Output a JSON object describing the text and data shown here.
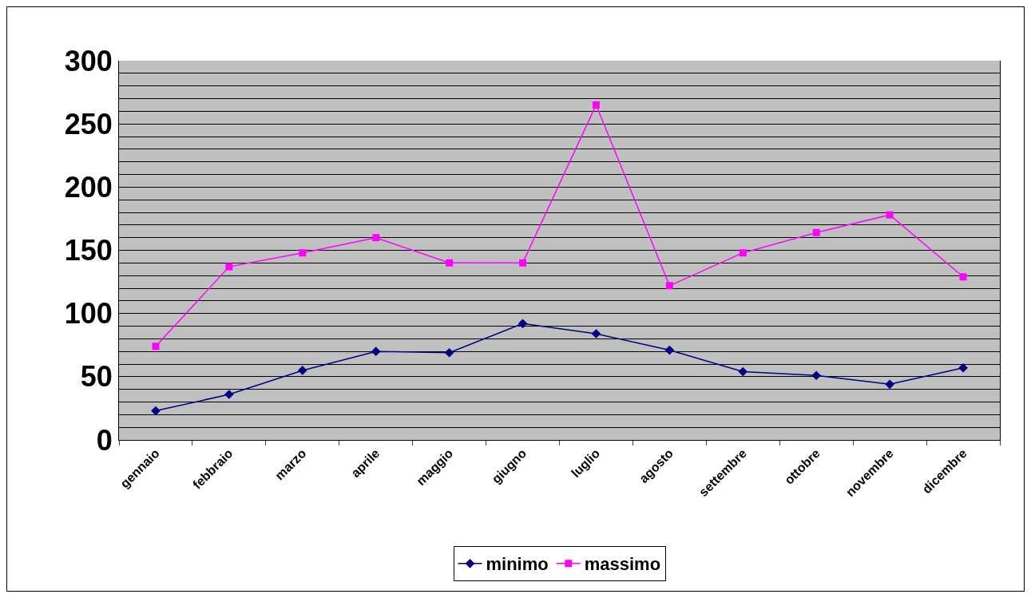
{
  "chart_data": {
    "type": "line",
    "categories": [
      "gennaio",
      "febbraio",
      "marzo",
      "aprile",
      "maggio",
      "giugno",
      "luglio",
      "agosto",
      "settembre",
      "ottobre",
      "novembre",
      "dicembre"
    ],
    "series": [
      {
        "name": "minimo",
        "color": "#000080",
        "marker": "diamond",
        "values": [
          23,
          36,
          55,
          70,
          69,
          92,
          84,
          71,
          54,
          51,
          44,
          57
        ]
      },
      {
        "name": "massimo",
        "color": "#ff00ff",
        "marker": "square",
        "values": [
          74,
          137,
          148,
          160,
          140,
          140,
          265,
          122,
          148,
          164,
          178,
          129
        ]
      }
    ],
    "ylim": [
      0,
      300
    ],
    "yticks": [
      0,
      {
        "value": 10,
        "label": null
      },
      {
        "value": 20,
        "label": null
      },
      {
        "value": 30,
        "label": null
      },
      {
        "value": 40,
        "label": null
      },
      50,
      {
        "value": 60,
        "label": null
      },
      {
        "value": 70,
        "label": null
      },
      {
        "value": 80,
        "label": null
      },
      {
        "value": 90,
        "label": null
      },
      100,
      {
        "value": 110,
        "label": null
      },
      {
        "value": 120,
        "label": null
      },
      {
        "value": 130,
        "label": null
      },
      {
        "value": 140,
        "label": null
      },
      150,
      {
        "value": 160,
        "label": null
      },
      {
        "value": 170,
        "label": null
      },
      {
        "value": 180,
        "label": null
      },
      {
        "value": 190,
        "label": null
      },
      200,
      {
        "value": 210,
        "label": null
      },
      {
        "value": 220,
        "label": null
      },
      {
        "value": 230,
        "label": null
      },
      {
        "value": 240,
        "label": null
      },
      250,
      {
        "value": 260,
        "label": null
      },
      {
        "value": 270,
        "label": null
      },
      {
        "value": 280,
        "label": null
      },
      {
        "value": 290,
        "label": null
      },
      300
    ],
    "grid": "y",
    "legend": "bottom",
    "line_style": "solid"
  }
}
